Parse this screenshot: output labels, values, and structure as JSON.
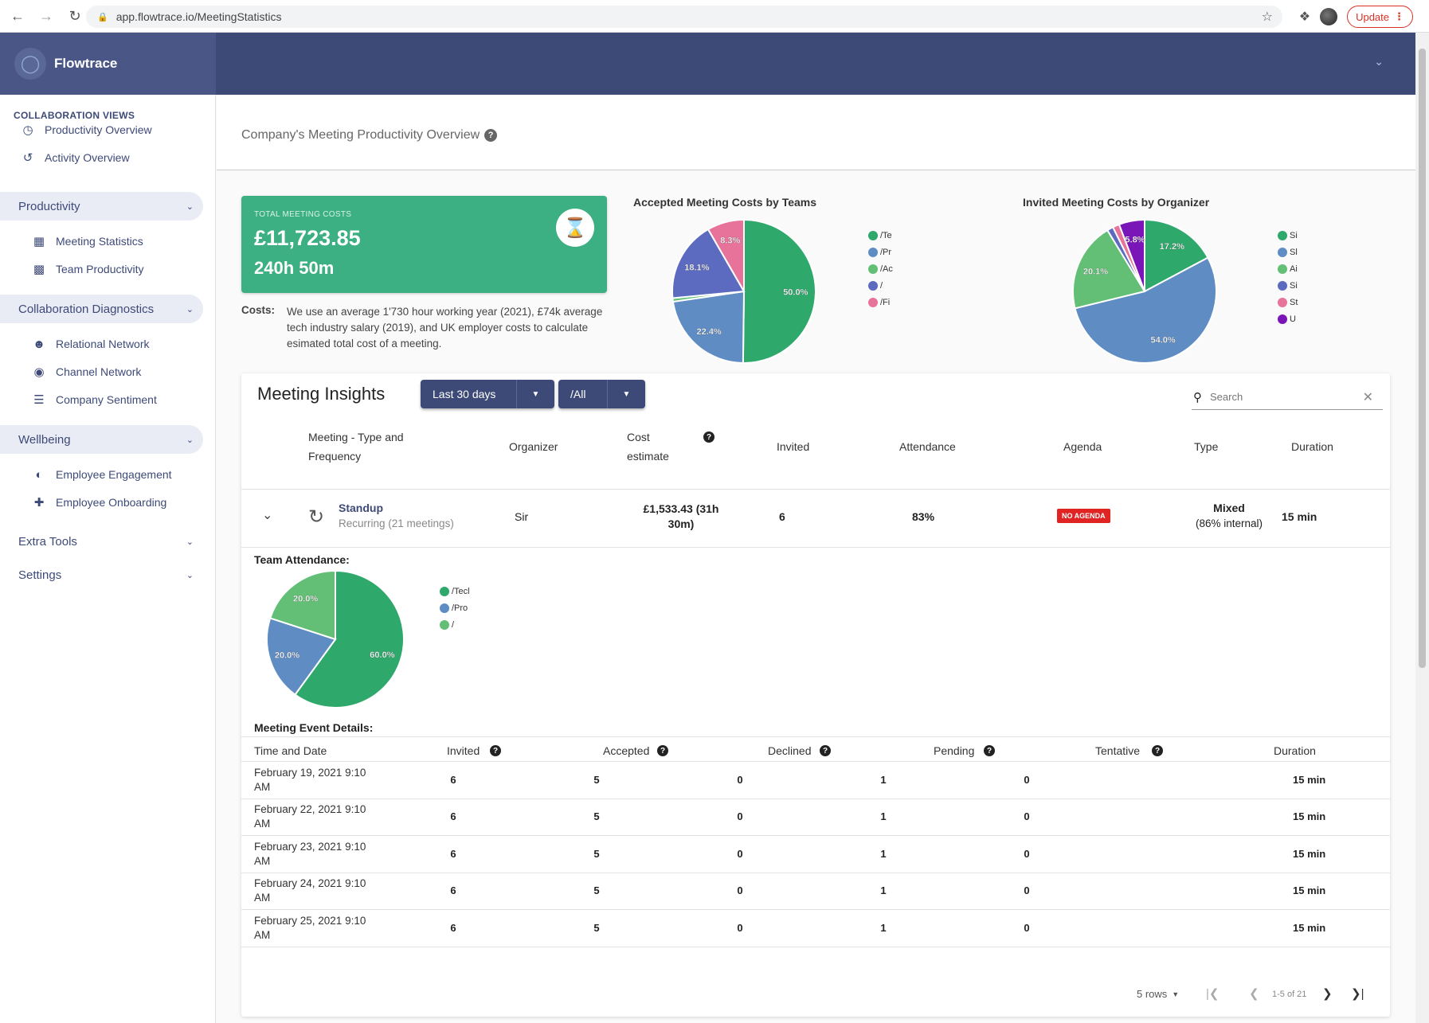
{
  "browser": {
    "url": "app.flowtrace.io/MeetingStatistics",
    "update_label": "Update"
  },
  "brand": {
    "name": "Flowtrace"
  },
  "sidebar": {
    "section_title": "COLLABORATION VIEWS",
    "top_items": [
      {
        "label": "Productivity Overview",
        "icon": "speedometer-icon"
      },
      {
        "label": "Activity Overview",
        "icon": "history-icon"
      }
    ],
    "groups": [
      {
        "label": "Productivity",
        "items": [
          {
            "label": "Meeting Statistics",
            "icon": "calendar-icon"
          },
          {
            "label": "Team Productivity",
            "icon": "badge-icon"
          }
        ]
      },
      {
        "label": "Collaboration Diagnostics",
        "items": [
          {
            "label": "Relational Network",
            "icon": "people-icon"
          },
          {
            "label": "Channel Network",
            "icon": "globe-icon"
          },
          {
            "label": "Company Sentiment",
            "icon": "list-icon"
          }
        ]
      },
      {
        "label": "Wellbeing",
        "items": [
          {
            "label": "Employee Engagement",
            "icon": "engagement-icon"
          },
          {
            "label": "Employee Onboarding",
            "icon": "person-add-icon"
          }
        ]
      },
      {
        "label": "Extra Tools",
        "items": []
      },
      {
        "label": "Settings",
        "items": []
      }
    ]
  },
  "page": {
    "title": "Company's Meeting Productivity Overview"
  },
  "cost_card": {
    "label": "TOTAL MEETING COSTS",
    "value": "£11,723.85",
    "hours": "240h 50m",
    "icon": "hourglass-icon"
  },
  "costs_note": {
    "label": "Costs:",
    "text": "We use an average 1'730 hour working year (2021), £74k average tech industry salary (2019), and UK employer costs to calculate esimated total cost of a meeting."
  },
  "colors": {
    "green": "#2fa86b",
    "blue": "#5f8cc3",
    "light_green": "#63bf76",
    "indigo": "#5c6bc0",
    "pink": "#e8739a",
    "purple": "#7a16b8"
  },
  "chart_data": [
    {
      "type": "pie",
      "title": "Accepted Meeting Costs by Teams",
      "slices": [
        {
          "label": "/Te",
          "value": 50.0,
          "shown": "50.0%",
          "color": "#2fa86b"
        },
        {
          "label": "/Pr",
          "value": 22.4,
          "shown": "22.4%",
          "color": "#5f8cc3"
        },
        {
          "label": "/Ac",
          "value": 0.8,
          "shown": "",
          "color": "#63bf76"
        },
        {
          "label": "/",
          "value": 18.1,
          "shown": "18.1%",
          "color": "#5c6bc0"
        },
        {
          "label": "/Fi",
          "value": 8.3,
          "shown": "8.3%",
          "color": "#e8739a"
        }
      ],
      "legend": "right"
    },
    {
      "type": "pie",
      "title": "Invited Meeting Costs by Organizer",
      "slices": [
        {
          "label": "Si",
          "value": 17.2,
          "shown": "17.2%",
          "color": "#2fa86b"
        },
        {
          "label": "Sl",
          "value": 54.0,
          "shown": "54.0%",
          "color": "#5f8cc3"
        },
        {
          "label": "Ai",
          "value": 20.1,
          "shown": "20.1%",
          "color": "#63bf76"
        },
        {
          "label": "Si",
          "value": 1.4,
          "shown": "",
          "color": "#5c6bc0"
        },
        {
          "label": "St",
          "value": 1.5,
          "shown": "",
          "color": "#e8739a"
        },
        {
          "label": "U",
          "value": 5.8,
          "shown": "5.8%",
          "color": "#7a16b8"
        }
      ],
      "legend": "right"
    },
    {
      "type": "pie",
      "title": "",
      "slices": [
        {
          "label": "/Tecl",
          "value": 60.0,
          "shown": "60.0%",
          "color": "#2fa86b"
        },
        {
          "label": "/Pro",
          "value": 20.0,
          "shown": "20.0%",
          "color": "#5f8cc3"
        },
        {
          "label": "/",
          "value": 20.0,
          "shown": "20.0%",
          "color": "#63bf76"
        }
      ],
      "legend": "right"
    }
  ],
  "insights": {
    "title": "Meeting Insights",
    "period": "Last 30 days",
    "scope": "/All",
    "search_placeholder": "Search",
    "headers": {
      "type": "Meeting - Type and Frequency",
      "organizer": "Organizer",
      "cost": "Cost estimate",
      "invited": "Invited",
      "attendance": "Attendance",
      "agenda": "Agenda",
      "mtype": "Type",
      "duration": "Duration"
    },
    "meeting": {
      "name": "Standup",
      "frequency": "Recurring (21 meetings)",
      "organizer": "Sir",
      "cost": "£1,533.43 (31h 30m)",
      "invited": "6",
      "attendance": "83%",
      "agenda": "NO AGENDA",
      "type": "Mixed",
      "type_detail": "(86% internal)",
      "duration": "15 min"
    },
    "team_attendance_label": "Team Attendance:",
    "event_details_label": "Meeting Event Details:",
    "event_headers": {
      "date": "Time and Date",
      "invited": "Invited",
      "accepted": "Accepted",
      "declined": "Declined",
      "pending": "Pending",
      "tentative": "Tentative",
      "duration": "Duration"
    },
    "events": [
      {
        "date": "February 19, 2021 9:10 AM",
        "invited": "6",
        "accepted": "5",
        "declined": "0",
        "pending": "1",
        "tentative": "0",
        "duration": "15 min"
      },
      {
        "date": "February 22, 2021 9:10 AM",
        "invited": "6",
        "accepted": "5",
        "declined": "0",
        "pending": "1",
        "tentative": "0",
        "duration": "15 min"
      },
      {
        "date": "February 23, 2021 9:10 AM",
        "invited": "6",
        "accepted": "5",
        "declined": "0",
        "pending": "1",
        "tentative": "0",
        "duration": "15 min"
      },
      {
        "date": "February 24, 2021 9:10 AM",
        "invited": "6",
        "accepted": "5",
        "declined": "0",
        "pending": "1",
        "tentative": "0",
        "duration": "15 min"
      },
      {
        "date": "February 25, 2021 9:10 AM",
        "invited": "6",
        "accepted": "5",
        "declined": "0",
        "pending": "1",
        "tentative": "0",
        "duration": "15 min"
      }
    ],
    "pager": {
      "rows": "5 rows",
      "range": "1-5 of 21"
    }
  }
}
